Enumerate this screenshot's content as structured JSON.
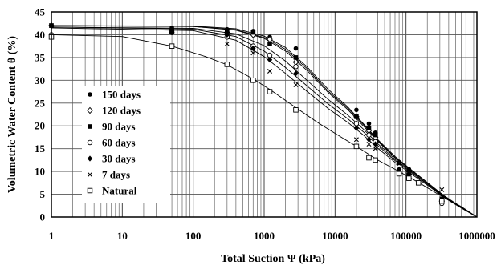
{
  "chart_data": {
    "type": "scatter",
    "xlabel": "Total Suction Ψ (kPa)",
    "ylabel": "Volumetric Water Content θ (%)",
    "x_scale": "log",
    "xlim": [
      1,
      1000000
    ],
    "ylim": [
      0,
      45
    ],
    "x_ticks": [
      "1",
      "10",
      "100",
      "1000",
      "10000",
      "100000",
      "1000000"
    ],
    "y_ticks": [
      "0",
      "5",
      "10",
      "15",
      "20",
      "25",
      "30",
      "35",
      "40",
      "45"
    ],
    "grid": true,
    "legend_position": "left",
    "series": [
      {
        "name": "150 days",
        "marker": "filled-circle",
        "points": [
          [
            1,
            42
          ],
          [
            50,
            41.5
          ],
          [
            300,
            41.2
          ],
          [
            700,
            40.8
          ],
          [
            1200,
            39.5
          ],
          [
            2800,
            37
          ],
          [
            20000,
            23.5
          ],
          [
            30000,
            20.5
          ],
          [
            37000,
            18.5
          ],
          [
            80000,
            12
          ],
          [
            110000,
            10.5
          ],
          [
            320000,
            4
          ]
        ],
        "curve": [
          [
            1,
            42
          ],
          [
            100,
            41.9
          ],
          [
            400,
            41.3
          ],
          [
            1000,
            39.7
          ],
          [
            2000,
            37.2
          ],
          [
            4000,
            33
          ],
          [
            8000,
            28
          ],
          [
            15000,
            24.2
          ],
          [
            25000,
            20.5
          ],
          [
            40000,
            17
          ],
          [
            70000,
            13.3
          ],
          [
            120000,
            10.3
          ],
          [
            200000,
            7.6
          ],
          [
            350000,
            4.6
          ],
          [
            600000,
            2.2
          ],
          [
            1000000,
            0
          ]
        ]
      },
      {
        "name": "120 days",
        "marker": "open-diamond",
        "points": [
          [
            1,
            42
          ],
          [
            50,
            41
          ],
          [
            300,
            40.5
          ],
          [
            700,
            40
          ],
          [
            1200,
            39
          ],
          [
            2800,
            34
          ],
          [
            20000,
            22
          ],
          [
            30000,
            19
          ],
          [
            37000,
            17.5
          ],
          [
            80000,
            11.5
          ],
          [
            110000,
            10
          ],
          [
            320000,
            3.5
          ]
        ],
        "curve": [
          [
            1,
            42
          ],
          [
            100,
            41.8
          ],
          [
            400,
            41
          ],
          [
            1000,
            39.2
          ],
          [
            2000,
            36.4
          ],
          [
            4000,
            32.2
          ],
          [
            8000,
            27.3
          ],
          [
            15000,
            23.6
          ],
          [
            25000,
            20
          ],
          [
            40000,
            16.6
          ],
          [
            70000,
            13
          ],
          [
            120000,
            10.1
          ],
          [
            200000,
            7.5
          ],
          [
            350000,
            4.5
          ],
          [
            600000,
            2.1
          ],
          [
            1000000,
            0
          ]
        ]
      },
      {
        "name": "90 days",
        "marker": "filled-square",
        "points": [
          [
            1,
            42
          ],
          [
            50,
            41
          ],
          [
            300,
            40.8
          ],
          [
            700,
            40.5
          ],
          [
            1200,
            38
          ],
          [
            2800,
            35
          ],
          [
            20000,
            22
          ],
          [
            30000,
            19.5
          ],
          [
            37000,
            18
          ],
          [
            80000,
            11.5
          ],
          [
            110000,
            10
          ],
          [
            320000,
            4
          ]
        ],
        "curve": [
          [
            1,
            42
          ],
          [
            100,
            41.8
          ],
          [
            400,
            41.1
          ],
          [
            1000,
            39.4
          ],
          [
            2000,
            36.8
          ],
          [
            4000,
            32.6
          ],
          [
            8000,
            27.6
          ],
          [
            15000,
            23.9
          ],
          [
            25000,
            20.3
          ],
          [
            40000,
            16.8
          ],
          [
            70000,
            13.1
          ],
          [
            120000,
            10.2
          ],
          [
            200000,
            7.5
          ],
          [
            350000,
            4.5
          ],
          [
            600000,
            2.1
          ],
          [
            1000000,
            0
          ]
        ]
      },
      {
        "name": "60 days",
        "marker": "open-circle",
        "points": [
          [
            1,
            40
          ],
          [
            50,
            40.5
          ],
          [
            300,
            39.5
          ],
          [
            700,
            37.5
          ],
          [
            1200,
            35.5
          ],
          [
            2800,
            33
          ],
          [
            20000,
            20.5
          ],
          [
            30000,
            18
          ],
          [
            37000,
            16.5
          ],
          [
            80000,
            11
          ],
          [
            110000,
            9.5
          ],
          [
            320000,
            3
          ]
        ],
        "curve": [
          [
            1,
            41.7
          ],
          [
            100,
            41.4
          ],
          [
            400,
            40.2
          ],
          [
            1000,
            37.6
          ],
          [
            2000,
            34.2
          ],
          [
            4000,
            30
          ],
          [
            8000,
            25.8
          ],
          [
            15000,
            22.4
          ],
          [
            25000,
            19.3
          ],
          [
            40000,
            16.1
          ],
          [
            70000,
            12.7
          ],
          [
            120000,
            9.9
          ],
          [
            200000,
            7.3
          ],
          [
            350000,
            4.4
          ],
          [
            600000,
            2.1
          ],
          [
            1000000,
            0
          ]
        ]
      },
      {
        "name": "30 days",
        "marker": "filled-diamond",
        "points": [
          [
            1,
            42
          ],
          [
            50,
            40.5
          ],
          [
            300,
            40
          ],
          [
            700,
            37
          ],
          [
            1200,
            34.5
          ],
          [
            2800,
            31.5
          ],
          [
            20000,
            19.5
          ],
          [
            30000,
            17
          ],
          [
            37000,
            16
          ],
          [
            80000,
            10.5
          ],
          [
            110000,
            9.5
          ],
          [
            320000,
            3.5
          ]
        ],
        "curve": [
          [
            1,
            41.7
          ],
          [
            100,
            41.2
          ],
          [
            400,
            39.6
          ],
          [
            1000,
            36.4
          ],
          [
            2000,
            32.8
          ],
          [
            4000,
            28.8
          ],
          [
            8000,
            24.8
          ],
          [
            15000,
            21.6
          ],
          [
            25000,
            18.7
          ],
          [
            40000,
            15.7
          ],
          [
            70000,
            12.4
          ],
          [
            120000,
            9.7
          ],
          [
            200000,
            7.2
          ],
          [
            350000,
            4.3
          ],
          [
            600000,
            2
          ],
          [
            1000000,
            0
          ]
        ]
      },
      {
        "name": "7 days",
        "marker": "x",
        "points": [
          [
            1,
            42
          ],
          [
            50,
            41
          ],
          [
            300,
            38
          ],
          [
            700,
            36
          ],
          [
            1200,
            32
          ],
          [
            2800,
            29
          ],
          [
            20000,
            17
          ],
          [
            30000,
            16
          ],
          [
            37000,
            15
          ],
          [
            80000,
            10
          ],
          [
            110000,
            9
          ],
          [
            320000,
            6
          ]
        ],
        "curve": [
          [
            1,
            41.5
          ],
          [
            100,
            40.9
          ],
          [
            400,
            38.8
          ],
          [
            1000,
            35.2
          ],
          [
            2000,
            31.5
          ],
          [
            4000,
            27.6
          ],
          [
            8000,
            23.8
          ],
          [
            15000,
            20.8
          ],
          [
            25000,
            18
          ],
          [
            40000,
            15.1
          ],
          [
            70000,
            12
          ],
          [
            120000,
            9.4
          ],
          [
            200000,
            7
          ],
          [
            350000,
            4.2
          ],
          [
            600000,
            2
          ],
          [
            1000000,
            0
          ]
        ]
      },
      {
        "name": "Natural",
        "marker": "open-square",
        "points": [
          [
            1,
            39.5
          ],
          [
            50,
            37.5
          ],
          [
            300,
            33.5
          ],
          [
            700,
            30
          ],
          [
            1200,
            27.5
          ],
          [
            2800,
            23.5
          ],
          [
            20000,
            15.5
          ],
          [
            30000,
            13
          ],
          [
            37000,
            12.5
          ],
          [
            80000,
            9.5
          ],
          [
            110000,
            8.5
          ],
          [
            150000,
            7.5
          ],
          [
            320000,
            3.5
          ]
        ],
        "curve": [
          [
            1,
            40
          ],
          [
            10,
            39.6
          ],
          [
            50,
            37.5
          ],
          [
            150,
            35.2
          ],
          [
            300,
            33.4
          ],
          [
            700,
            30.3
          ],
          [
            1200,
            28
          ],
          [
            2800,
            24
          ],
          [
            6000,
            20.5
          ],
          [
            12000,
            17.6
          ],
          [
            20000,
            15.5
          ],
          [
            40000,
            12.5
          ],
          [
            80000,
            10
          ],
          [
            150000,
            7.6
          ],
          [
            300000,
            4.8
          ],
          [
            600000,
            2.3
          ],
          [
            1000000,
            0
          ]
        ]
      }
    ]
  }
}
